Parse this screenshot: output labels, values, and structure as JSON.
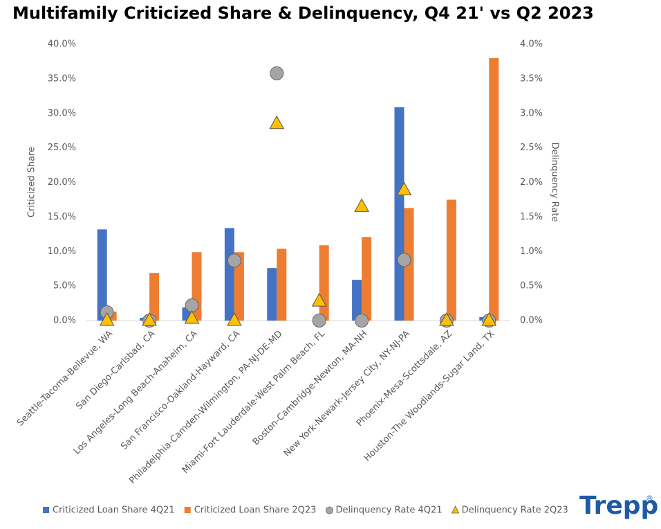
{
  "chart_data": {
    "type": "bar",
    "title": "Multifamily Criticized Share & Delinquency, Q4 21' vs Q2 2023",
    "y_label": "Criticized Share",
    "y2_label": "Delinquency Rate",
    "logo": "Trepp",
    "categories": [
      "Seattle-Tacoma-Bellevue, WA",
      "San Diego-Carlsbad, CA",
      "Los Angeles-Long Beach-Anaheim, CA",
      "San Francisco-Oakland-Hayward, CA",
      "Philadelphia-Camden-Wilmington, PA-NJ-DE-MD",
      "Miami-Fort Lauderdale-West Palm Beach, FL",
      "Boston-Cambridge-Newton, MA-NH",
      "New York-Newark-Jersey City, NY-NJ-PA",
      "Phoenix-Mesa-Scottsdale, AZ",
      "Houston-The Woodlands-Sugar Land, TX"
    ],
    "series": [
      {
        "name": "Criticized Loan Share 4Q21",
        "type": "bar",
        "color": "#4472c4",
        "values": [
          13.2,
          0.4,
          1.9,
          13.4,
          7.6,
          0,
          5.9,
          30.9,
          0,
          0.5
        ]
      },
      {
        "name": "Criticized Loan Share 2Q23",
        "type": "bar",
        "color": "#ed7d31",
        "values": [
          1.3,
          6.9,
          9.9,
          9.9,
          10.4,
          10.9,
          12.1,
          16.3,
          17.5,
          38.0
        ]
      },
      {
        "name": "Delinquency Rate 4Q21",
        "type": "scatter",
        "marker": "circle",
        "axis": "y2",
        "color": "#a5a5a5",
        "values": [
          0.12,
          0,
          0.22,
          0.87,
          3.58,
          0,
          0,
          0.88,
          0,
          0
        ]
      },
      {
        "name": "Delinquency Rate 2Q23",
        "type": "scatter",
        "marker": "triangle",
        "axis": "y2",
        "color": "#ffc000",
        "values": [
          0,
          0,
          0.03,
          0,
          2.85,
          0.28,
          1.65,
          1.89,
          0,
          0
        ]
      }
    ],
    "ylim": [
      0,
      40
    ],
    "yticks": [
      {
        "value": 0,
        "label": "0.0%"
      },
      {
        "value": 5,
        "label": "5.0%"
      },
      {
        "value": 10,
        "label": "10.0%"
      },
      {
        "value": 15,
        "label": "15.0%"
      },
      {
        "value": 20,
        "label": "20.0%"
      },
      {
        "value": 25,
        "label": "25.0%"
      },
      {
        "value": 30,
        "label": "30.0%"
      },
      {
        "value": 35,
        "label": "35.0%"
      },
      {
        "value": 40,
        "label": "40.0%"
      }
    ],
    "y2lim": [
      0,
      4
    ],
    "y2ticks": [
      {
        "value": 0,
        "label": "0.0%"
      },
      {
        "value": 0.5,
        "label": "0.5%"
      },
      {
        "value": 1,
        "label": "1.0%"
      },
      {
        "value": 1.5,
        "label": "1.5%"
      },
      {
        "value": 2,
        "label": "2.0%"
      },
      {
        "value": 2.5,
        "label": "2.5%"
      },
      {
        "value": 3,
        "label": "3.0%"
      },
      {
        "value": 3.5,
        "label": "3.5%"
      },
      {
        "value": 4,
        "label": "4.0%"
      }
    ],
    "grid": false,
    "legend": "bottom"
  }
}
